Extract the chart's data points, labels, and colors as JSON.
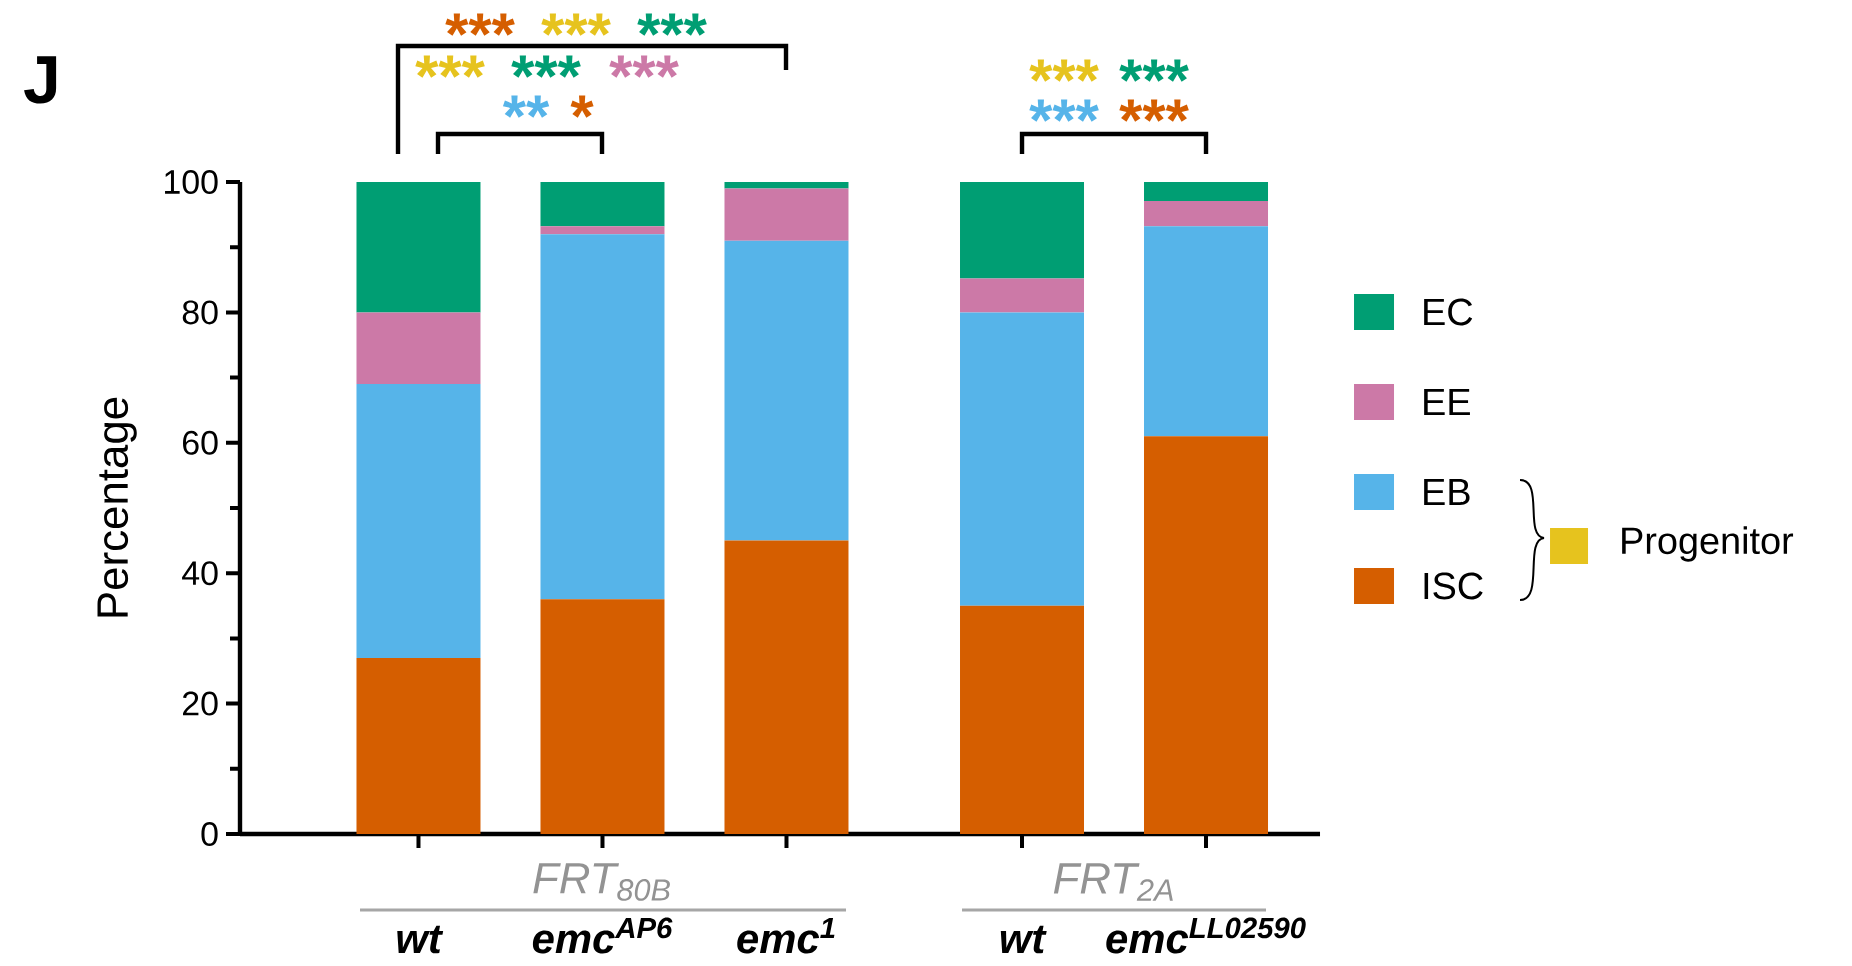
{
  "chart_data": {
    "type": "bar",
    "stacked": true,
    "title": "J",
    "ylabel": "Percentage",
    "categories": [
      "wt",
      "emc$^{AP6}$",
      "emc$^{1}$",
      "wt",
      "emc$^{LL02590}$"
    ],
    "series": [
      {
        "name": "ISC",
        "color": "#d55e00",
        "values": [
          27,
          36,
          45,
          35,
          61
        ]
      },
      {
        "name": "EB",
        "color": "#56b4e9",
        "values": [
          42,
          56,
          46,
          45,
          32.2
        ]
      },
      {
        "name": "EE",
        "color": "#cc79a7",
        "values": [
          11,
          1.2,
          8,
          5.2,
          3.9
        ]
      },
      {
        "name": "EC",
        "color": "#009e73",
        "values": [
          20,
          6.8,
          1,
          14.8,
          2.9
        ]
      }
    ],
    "ylim": [
      0,
      100
    ],
    "yticks": [
      0,
      {
        "value": 10,
        "label": null
      },
      20,
      {
        "value": 30,
        "label": null
      },
      40,
      {
        "value": 50,
        "label": null
      },
      60,
      {
        "value": 70,
        "label": null
      },
      80,
      {
        "value": 90,
        "label": null
      },
      100
    ],
    "legend": "right",
    "annotations": [
      "***",
      "***",
      "***",
      "***",
      "***",
      "***",
      "**",
      "*",
      "***",
      "***",
      "***",
      "***",
      "FRT$_{80B}$",
      "FRT$_{2A}$",
      "Progenitor"
    ]
  }
}
